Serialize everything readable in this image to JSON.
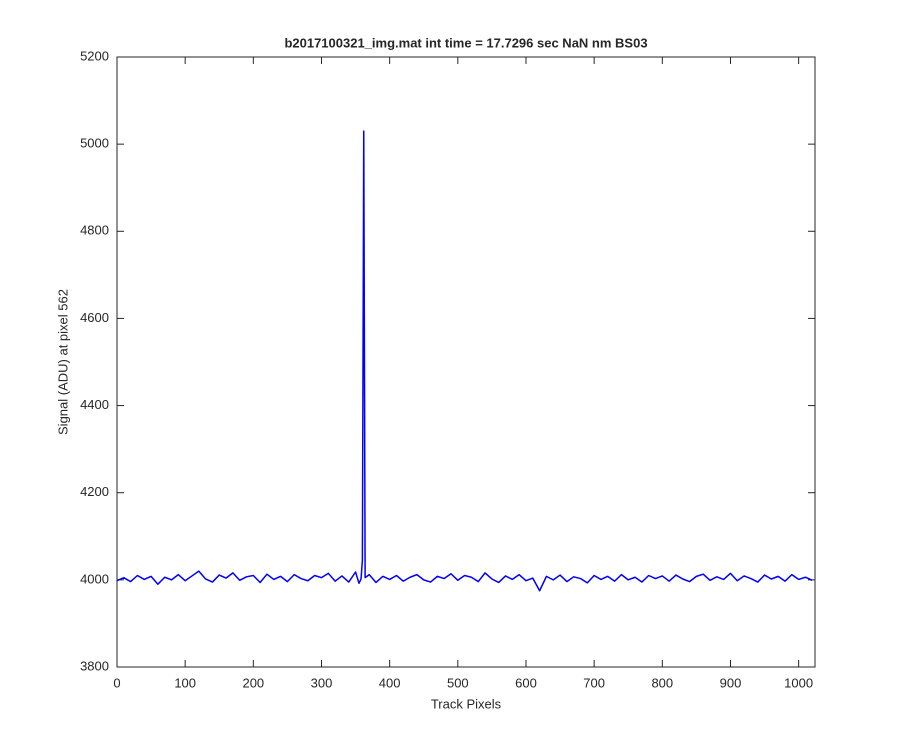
{
  "chart_data": {
    "type": "line",
    "title": "b2017100321_img.mat int time = 17.7296 sec  NaN nm BS03",
    "x_label": "Track Pixels",
    "y_label": "Signal (ADU) at pixel 562",
    "xlim": [
      0,
      1024
    ],
    "ylim": [
      3800,
      5200
    ],
    "xticks": [
      0,
      100,
      200,
      300,
      400,
      500,
      600,
      700,
      800,
      900,
      1000
    ],
    "yticks": [
      3800,
      4000,
      4200,
      4400,
      4600,
      4800,
      5000,
      5200
    ],
    "grid": false,
    "series": [
      {
        "color": "#0000ff",
        "x": [
          0,
          10,
          20,
          30,
          40,
          50,
          60,
          70,
          80,
          90,
          100,
          110,
          120,
          130,
          140,
          150,
          160,
          170,
          180,
          190,
          200,
          210,
          220,
          230,
          240,
          250,
          260,
          270,
          280,
          290,
          300,
          310,
          320,
          330,
          340,
          350,
          355,
          358,
          360,
          362,
          364,
          370,
          380,
          390,
          400,
          410,
          420,
          430,
          440,
          450,
          460,
          470,
          480,
          490,
          500,
          510,
          520,
          530,
          540,
          550,
          560,
          570,
          580,
          590,
          600,
          610,
          620,
          630,
          640,
          650,
          660,
          670,
          680,
          690,
          700,
          710,
          720,
          730,
          740,
          750,
          760,
          770,
          780,
          790,
          800,
          810,
          820,
          830,
          840,
          850,
          860,
          870,
          880,
          890,
          900,
          910,
          920,
          930,
          940,
          950,
          960,
          970,
          980,
          990,
          1000,
          1010,
          1020
        ],
        "values": [
          3998,
          4005,
          3996,
          4010,
          4001,
          4008,
          3990,
          4006,
          4000,
          4012,
          3998,
          4009,
          4020,
          4002,
          3995,
          4011,
          4004,
          4016,
          3999,
          4007,
          4010,
          3994,
          4013,
          4001,
          4008,
          3996,
          4012,
          4003,
          3998,
          4010,
          4005,
          4015,
          3997,
          4009,
          3995,
          4018,
          3992,
          4002,
          4045,
          5030,
          4005,
          4012,
          3994,
          4008,
          4001,
          4010,
          3997,
          4006,
          4012,
          4000,
          3995,
          4008,
          4003,
          4014,
          3999,
          4010,
          4006,
          3996,
          4016,
          4002,
          3994,
          4009,
          4001,
          4012,
          3998,
          4004,
          3975,
          4008,
          4000,
          4011,
          3996,
          4007,
          4003,
          3993,
          4010,
          4001,
          4008,
          3997,
          4012,
          4000,
          4006,
          3995,
          4010,
          4003,
          4009,
          3997,
          4011,
          4002,
          3996,
          4008,
          4013,
          3999,
          4007,
          4001,
          4015,
          3998,
          4009,
          4003,
          3995,
          4011,
          4002,
          4008,
          3997,
          4012,
          4001,
          4006,
          3999
        ]
      }
    ]
  }
}
